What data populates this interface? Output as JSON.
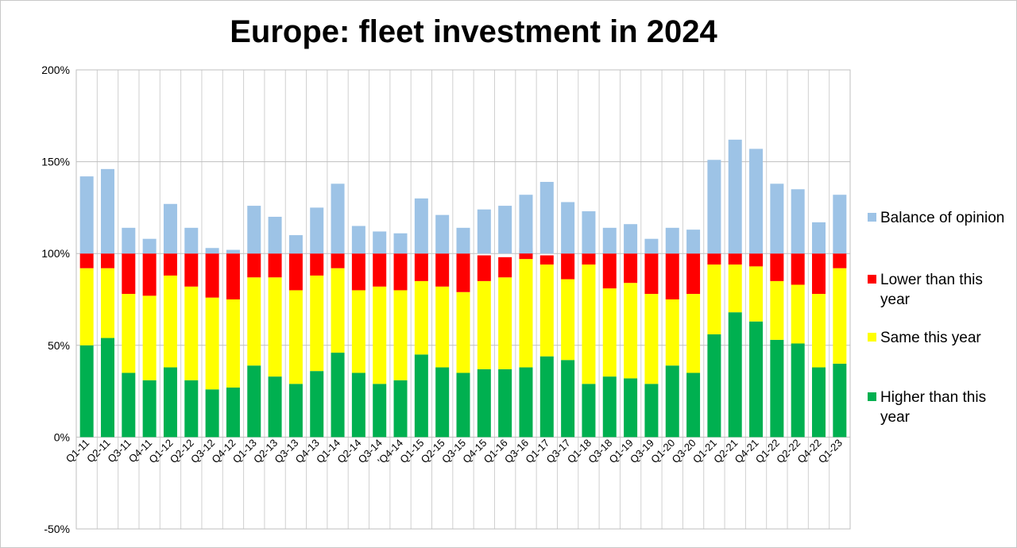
{
  "chart_data": {
    "type": "bar",
    "stacked": true,
    "title": "Europe: fleet investment in 2024",
    "xlabel": "",
    "ylabel": "",
    "ylim": [
      -50,
      200
    ],
    "yticks": [
      -50,
      0,
      50,
      100,
      150,
      200
    ],
    "ytick_labels": [
      "-50%",
      "0%",
      "50%",
      "100%",
      "150%",
      "200%"
    ],
    "grid": true,
    "legend_position": "right",
    "categories": [
      "Q1-11",
      "Q2-11",
      "Q3-11",
      "Q4-11",
      "Q1-12",
      "Q2-12",
      "Q3-12",
      "Q4-12",
      "Q1-13",
      "Q2-13",
      "Q3-13",
      "Q4-13",
      "Q1-14",
      "Q2-14",
      "Q3-14",
      "'Q4-14",
      "Q1-15",
      "Q2-15",
      "Q3-15",
      "Q4-15",
      "Q1-16",
      "Q3-16",
      "Q1-17",
      "Q3-17",
      "Q1-18",
      "Q3-18",
      "Q1-19",
      "Q3-19",
      "Q1-20",
      "Q3-20",
      "Q1-21",
      "Q2-21",
      "Q4-21",
      "Q1-22",
      "Q2-22",
      "Q4-22",
      "Q1-23"
    ],
    "x_tick_labels": [
      "Q1-11",
      "Q2-11",
      "Q3-11",
      "Q4-11",
      "Q1-12",
      "Q2-12",
      "Q3-12",
      "Q4-12",
      "Q1-13",
      "Q2-13",
      "Q3-13",
      "Q4-13",
      "Q1-14",
      "Q2-14",
      "Q3-14",
      "'Q4-14",
      "Q1-15",
      "Q2-15",
      "Q3-15",
      "Q4-15",
      "Q1-16",
      "Q3-16",
      "Q1-17",
      "Q3-17",
      "Q1-18",
      "Q3-18",
      "Q1-19",
      "Q3-19",
      "Q1-20",
      "Q3-20",
      "Q1-21",
      "Q2-21",
      "Q4-21",
      "Q1-22",
      "Q2-22",
      "Q4-22",
      "Q1-23"
    ],
    "series": [
      {
        "name": "Higher than this year",
        "color": "#00b050",
        "values": [
          50,
          54,
          35,
          31,
          38,
          31,
          26,
          27,
          39,
          33,
          29,
          36,
          46,
          35,
          29,
          31,
          45,
          38,
          35,
          37,
          37,
          38,
          44,
          42,
          29,
          33,
          32,
          29,
          39,
          35,
          56,
          68,
          63,
          53,
          51,
          38,
          40
        ]
      },
      {
        "name": "Same this year",
        "color": "#ffff00",
        "values": [
          42,
          38,
          43,
          46,
          50,
          51,
          50,
          48,
          48,
          54,
          51,
          52,
          46,
          45,
          53,
          49,
          40,
          44,
          44,
          48,
          50,
          59,
          50,
          44,
          65,
          48,
          52,
          49,
          36,
          43,
          38,
          26,
          30,
          32,
          32,
          40,
          52
        ]
      },
      {
        "name": "Lower than this year",
        "color": "#ff0000",
        "values": [
          8,
          8,
          22,
          23,
          12,
          18,
          24,
          25,
          13,
          13,
          20,
          12,
          8,
          20,
          18,
          20,
          15,
          18,
          21,
          14,
          11,
          6,
          5,
          14,
          6,
          19,
          16,
          22,
          25,
          22,
          6,
          6,
          7,
          15,
          17,
          22,
          8
        ]
      },
      {
        "name": "Balance of opinion",
        "color": "#9dc3e6",
        "values": [
          42,
          46,
          14,
          8,
          27,
          14,
          3,
          2,
          26,
          20,
          10,
          25,
          38,
          15,
          12,
          11,
          30,
          21,
          14,
          24,
          26,
          32,
          39,
          28,
          23,
          14,
          16,
          8,
          14,
          13,
          51,
          62,
          57,
          38,
          35,
          17,
          32
        ]
      }
    ],
    "legend_order": [
      "Balance of opinion",
      "Lower than this year",
      "Same this year",
      "Higher than this year"
    ]
  },
  "legend": [
    {
      "label": "Balance of opinion",
      "color": "#9dc3e6"
    },
    {
      "label": "Lower than this year",
      "color": "#ff0000"
    },
    {
      "label": "Same this year",
      "color": "#ffff00"
    },
    {
      "label": "Higher than this year",
      "color": "#00b050"
    }
  ]
}
